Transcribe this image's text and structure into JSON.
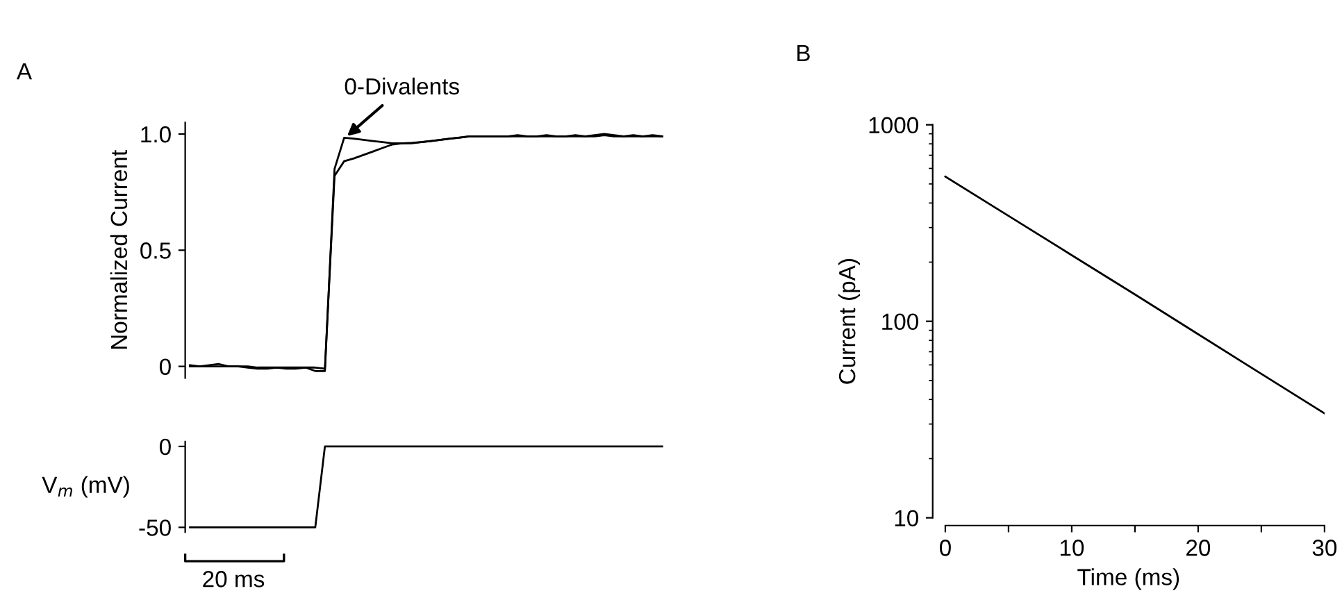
{
  "chart_data": [
    {
      "type": "line",
      "title": "A",
      "ylabel": "Normalized Current",
      "categories": [
        null,
        null,
        null,
        null,
        null,
        null,
        null,
        null,
        null,
        null,
        null,
        null,
        null,
        null,
        null,
        null,
        null,
        null,
        null,
        null,
        null,
        null,
        null,
        null,
        null,
        null,
        null,
        null,
        null,
        null,
        null,
        null,
        null,
        null,
        null,
        null,
        null,
        null,
        null,
        null,
        null,
        null,
        null,
        null,
        null,
        null,
        null,
        null,
        null,
        null
      ],
      "series": [
        {
          "color": "#000000",
          "values": [
            0.005,
            0.0,
            0.005,
            0.01,
            0.0,
            0.0,
            -0.005,
            -0.01,
            -0.01,
            -0.005,
            -0.01,
            -0.01,
            -0.005,
            -0.02,
            -0.02,
            0.85,
            0.984,
            0.98,
            0.975,
            0.97,
            0.965,
            0.96,
            0.96,
            0.962,
            0.965,
            0.97,
            0.975,
            0.98,
            0.985,
            0.99,
            0.99,
            0.99,
            0.99,
            0.99,
            0.995,
            0.99,
            0.99,
            0.995,
            0.99,
            0.99,
            0.995,
            0.99,
            0.995,
            1.0,
            0.995,
            0.99,
            0.995,
            0.99,
            0.995,
            0.99
          ]
        },
        {
          "color": "#000000",
          "values": [
            0.0,
            0.0,
            0.0,
            0.0,
            0.0,
            0.0,
            0.0,
            -0.005,
            -0.005,
            -0.005,
            -0.005,
            -0.005,
            -0.005,
            -0.005,
            -0.01,
            0.82,
            0.883,
            0.895,
            0.91,
            0.925,
            0.94,
            0.955,
            0.96,
            0.96,
            0.965,
            0.97,
            0.975,
            0.98,
            0.985,
            0.99,
            0.99,
            0.99,
            0.99,
            0.99,
            0.99,
            0.99,
            0.99,
            0.99,
            0.99,
            0.99,
            0.99,
            0.99,
            0.99,
            0.995,
            0.99,
            0.99,
            0.99,
            0.99,
            0.99,
            0.99
          ]
        }
      ],
      "ylim": [
        -0.05,
        1.05
      ],
      "yticks": [
        {
          "value": 0,
          "label": "0"
        },
        0.5,
        {
          "value": 1.0,
          "label": "1.0"
        }
      ],
      "tick_labels": "y",
      "grid": false,
      "legend": false,
      "annotations": [
        {
          "text": "0-Divalents",
          "y": 0.98
        }
      ]
    },
    {
      "type": "line",
      "ylabel": "V$_{m}$ (mV)",
      "categories": [
        null,
        null,
        null,
        null,
        null,
        null,
        null,
        null,
        null,
        null,
        null,
        null,
        null,
        null,
        null,
        null,
        null,
        null,
        null,
        null,
        null,
        null,
        null,
        null,
        null,
        null,
        null,
        null,
        null,
        null,
        null,
        null,
        null,
        null,
        null,
        null,
        null,
        null,
        null,
        null,
        null,
        null,
        null,
        null,
        null,
        null,
        null,
        null,
        null,
        null
      ],
      "series": [
        {
          "color": "#000000",
          "values": [
            -50,
            -50,
            -50,
            -50,
            -50,
            -50,
            -50,
            -50,
            -50,
            -50,
            -50,
            -50,
            -50,
            -50,
            0,
            0,
            0,
            0,
            0,
            0,
            0,
            0,
            0,
            0,
            0,
            0,
            0,
            0,
            0,
            0,
            0,
            0,
            0,
            0,
            0,
            0,
            0,
            0,
            0,
            0,
            0,
            0,
            0,
            0,
            0,
            0,
            0,
            0,
            0,
            0
          ]
        }
      ],
      "ylim": [
        -53,
        3
      ],
      "yticks": [
        {
          "value": -50,
          "label": "-50"
        },
        0
      ],
      "tick_labels": "y",
      "grid": false,
      "legend": false,
      "annotations": [
        "20 ms"
      ]
    },
    {
      "type": "line",
      "title": "B",
      "xlabel": "Time (ms)",
      "ylabel": "Current (pA)",
      "log": "y",
      "series": [
        {
          "color": "#000000",
          "x": [
            0,
            5,
            10,
            15,
            20,
            25,
            30
          ],
          "values": [
            545,
            344,
            217,
            137,
            86,
            54,
            34
          ]
        }
      ],
      "xlim": [
        -1,
        30
      ],
      "xticks": [
        0,
        {
          "value": 5,
          "label": null
        },
        10,
        {
          "value": 15,
          "label": null
        },
        20,
        {
          "value": 25,
          "label": null
        },
        30
      ],
      "ylim": [
        10,
        1000
      ],
      "yticks": [
        10,
        100,
        1000
      ],
      "grid": false,
      "legend": false
    }
  ]
}
